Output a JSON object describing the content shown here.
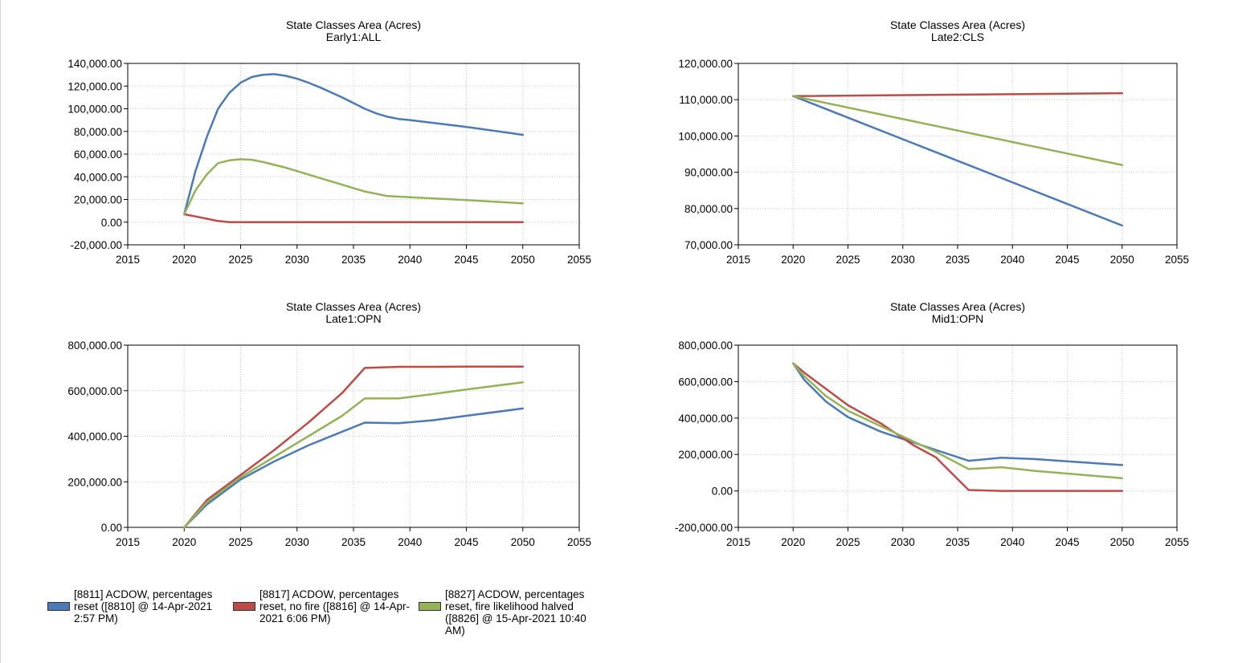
{
  "chart_data": [
    {
      "type": "line",
      "title": "State Classes Area (Acres)",
      "subtitle": "Early1:ALL",
      "xlim": [
        2015,
        2055
      ],
      "ylim": [
        -20000,
        140000
      ],
      "xticks": [
        2015,
        2020,
        2025,
        2030,
        2035,
        2040,
        2045,
        2050,
        2055
      ],
      "yticks": [
        -20000,
        0,
        20000,
        40000,
        60000,
        80000,
        100000,
        120000,
        140000
      ],
      "x": [
        2020,
        2021,
        2022,
        2023,
        2024,
        2025,
        2026,
        2027,
        2028,
        2029,
        2030,
        2031,
        2032,
        2033,
        2034,
        2035,
        2036,
        2037,
        2038,
        2039,
        2040,
        2045,
        2050
      ],
      "series": [
        {
          "key": "s8811",
          "values": [
            7000,
            45000,
            75000,
            100000,
            114000,
            123000,
            128000,
            130000,
            130500,
            129000,
            126500,
            123000,
            119000,
            114500,
            110000,
            105000,
            100000,
            96000,
            93000,
            91000,
            90000,
            84000,
            77000
          ]
        },
        {
          "key": "s8817",
          "values": [
            7000,
            5000,
            3000,
            1000,
            0,
            0,
            0,
            0,
            0,
            0,
            0,
            0,
            0,
            0,
            0,
            0,
            0,
            0,
            0,
            0,
            0,
            0,
            0
          ]
        },
        {
          "key": "s8827",
          "values": [
            7000,
            28000,
            42000,
            52000,
            54500,
            55500,
            55000,
            53000,
            50500,
            48000,
            45000,
            42000,
            39000,
            36000,
            33000,
            30000,
            27000,
            25000,
            23000,
            22500,
            22000,
            19500,
            16500
          ]
        }
      ]
    },
    {
      "type": "line",
      "title": "State Classes Area (Acres)",
      "subtitle": "Late2:CLS",
      "xlim": [
        2015,
        2055
      ],
      "ylim": [
        70000,
        120000
      ],
      "xticks": [
        2015,
        2020,
        2025,
        2030,
        2035,
        2040,
        2045,
        2050,
        2055
      ],
      "yticks": [
        70000,
        80000,
        90000,
        100000,
        110000,
        120000
      ],
      "x": [
        2020,
        2050
      ],
      "series": [
        {
          "key": "s8811",
          "values": [
            111000,
            75300
          ]
        },
        {
          "key": "s8817",
          "values": [
            111000,
            111800
          ]
        },
        {
          "key": "s8827",
          "values": [
            111000,
            92000
          ]
        }
      ]
    },
    {
      "type": "line",
      "title": "State Classes Area (Acres)",
      "subtitle": "Late1:OPN",
      "xlim": [
        2015,
        2055
      ],
      "ylim": [
        0,
        800000
      ],
      "xticks": [
        2015,
        2020,
        2025,
        2030,
        2035,
        2040,
        2045,
        2050,
        2055
      ],
      "yticks": [
        0,
        200000,
        400000,
        600000,
        800000
      ],
      "x": [
        2020,
        2022,
        2025,
        2028,
        2031,
        2034,
        2036,
        2039,
        2042,
        2045,
        2050
      ],
      "series": [
        {
          "key": "s8811",
          "values": [
            0,
            100000,
            210000,
            290000,
            360000,
            420000,
            460000,
            457000,
            470000,
            490000,
            522000
          ]
        },
        {
          "key": "s8817",
          "values": [
            0,
            120000,
            230000,
            340000,
            460000,
            590000,
            700000,
            705000,
            705000,
            706000,
            706000
          ]
        },
        {
          "key": "s8827",
          "values": [
            0,
            110000,
            220000,
            310000,
            400000,
            490000,
            566000,
            566000,
            585000,
            605000,
            637000
          ]
        }
      ]
    },
    {
      "type": "line",
      "title": "State Classes Area (Acres)",
      "subtitle": "Mid1:OPN",
      "xlim": [
        2015,
        2055
      ],
      "ylim": [
        -200000,
        800000
      ],
      "xticks": [
        2015,
        2020,
        2025,
        2030,
        2035,
        2040,
        2045,
        2050,
        2055
      ],
      "yticks": [
        -200000,
        0,
        200000,
        400000,
        600000,
        800000
      ],
      "x": [
        2020,
        2021,
        2023,
        2025,
        2028,
        2031,
        2033,
        2036,
        2039,
        2042,
        2045,
        2050
      ],
      "series": [
        {
          "key": "s8811",
          "values": [
            700000,
            610000,
            490000,
            405000,
            325000,
            265000,
            225000,
            165000,
            182000,
            175000,
            162000,
            142000
          ]
        },
        {
          "key": "s8817",
          "values": [
            700000,
            650000,
            560000,
            470000,
            370000,
            250000,
            185000,
            5000,
            0,
            0,
            0,
            0
          ]
        },
        {
          "key": "s8827",
          "values": [
            700000,
            630000,
            520000,
            440000,
            355000,
            270000,
            215000,
            120000,
            130000,
            110000,
            95000,
            70000
          ]
        }
      ]
    }
  ],
  "legend": [
    {
      "key": "s8811",
      "label": "[8811] ACDOW, percentages reset ([8810] @ 14-Apr-2021 2:57 PM)",
      "color": "#4a7ab8"
    },
    {
      "key": "s8817",
      "label": "[8817] ACDOW, percentages reset, no fire ([8816] @ 14-Apr-2021 6:06 PM)",
      "color": "#bd4b48"
    },
    {
      "key": "s8827",
      "label": "[8827] ACDOW, percentages reset, fire likelihood halved ([8826] @ 15-Apr-2021 10:40 AM)",
      "color": "#93b356"
    }
  ]
}
